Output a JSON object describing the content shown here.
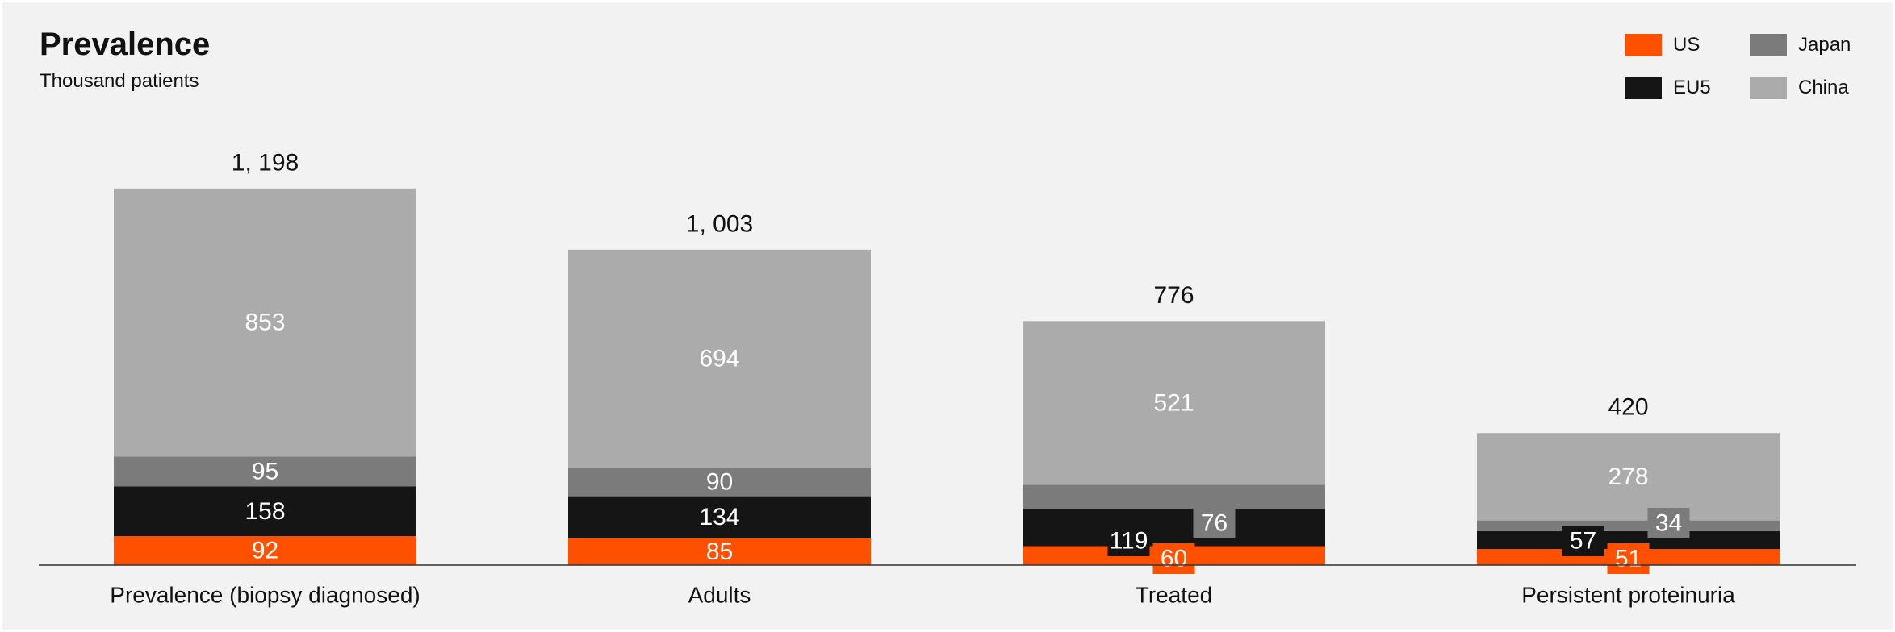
{
  "chart_data": {
    "type": "bar",
    "stacked": true,
    "title": "Prevalence",
    "subtitle": "Thousand patients",
    "categories": [
      "Prevalence (biopsy diagnosed)",
      "Adults",
      "Treated",
      "Persistent proteinuria"
    ],
    "series": [
      {
        "name": "US",
        "color": "#ff5000",
        "values": [
          92,
          85,
          60,
          51
        ]
      },
      {
        "name": "EU5",
        "color": "#151515",
        "values": [
          158,
          134,
          119,
          57
        ]
      },
      {
        "name": "Japan",
        "color": "#7b7b7b",
        "values": [
          95,
          90,
          76,
          34
        ]
      },
      {
        "name": "China",
        "color": "#ababab",
        "values": [
          853,
          694,
          521,
          278
        ]
      }
    ],
    "totals": [
      1198,
      1003,
      776,
      420
    ],
    "total_labels": [
      "1, 198",
      "1, 003",
      "776",
      "420"
    ],
    "legend": {
      "position": "top-right",
      "columns": 2
    }
  }
}
